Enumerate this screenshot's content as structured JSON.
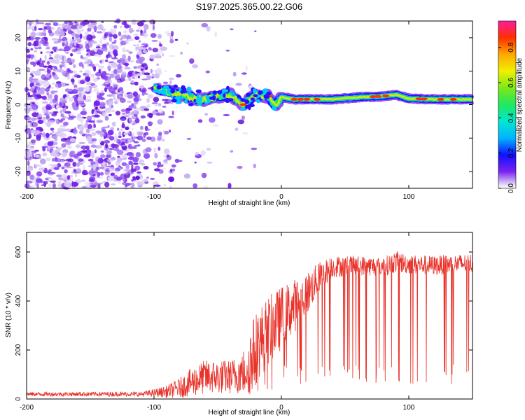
{
  "title": "S197.2025.365.00.22.G06",
  "chart_data": [
    {
      "type": "heatmap",
      "title": "S197.2025.365.00.22.G06",
      "xlabel": "Height of straight line (km)",
      "ylabel": "Frequency (Hz)",
      "xlim": [
        -200,
        150
      ],
      "ylim": [
        -25,
        25
      ],
      "x_ticks": [
        -200,
        -100,
        0,
        100
      ],
      "y_ticks": [
        -20,
        -10,
        0,
        10,
        20
      ],
      "ridge": {
        "x": [
          -100,
          -90,
          -80,
          -70,
          -60,
          -50,
          -40,
          -30,
          -20,
          -10,
          -5,
          0,
          10,
          20,
          40,
          60,
          80,
          90,
          100,
          120,
          150
        ],
        "freq": [
          5,
          4,
          3,
          2,
          1.5,
          2.5,
          3,
          0,
          3,
          2.5,
          -0.5,
          2.3,
          1.6,
          1.6,
          1.6,
          2.2,
          2.5,
          3,
          1.8,
          1.6,
          1.6
        ]
      },
      "colorbar": {
        "label": "Normalized spectral amplitude",
        "range": [
          0,
          0.95
        ],
        "ticks": [
          "0.0",
          "0.2",
          "0.4",
          "0.6",
          "0.8"
        ]
      }
    },
    {
      "type": "line",
      "xlabel": "Height of straight line (km)",
      "ylabel": "SNR (10 * v/v)",
      "xlim": [
        -200,
        150
      ],
      "ylim": [
        0,
        680
      ],
      "x_ticks": [
        -200,
        -100,
        0,
        100
      ],
      "y_ticks": [
        0,
        200,
        400,
        600
      ],
      "color": "#e8322a",
      "envelope": {
        "x": [
          -200,
          -110,
          -100,
          -90,
          -80,
          -70,
          -60,
          -50,
          -40,
          -30,
          -25,
          -20,
          -10,
          0,
          10,
          20,
          30,
          40,
          60,
          80,
          90,
          100,
          120,
          150
        ],
        "base": [
          20,
          20,
          25,
          30,
          45,
          70,
          90,
          90,
          90,
          110,
          150,
          210,
          280,
          330,
          380,
          430,
          500,
          540,
          545,
          540,
          560,
          550,
          545,
          555
        ],
        "amp": [
          8,
          10,
          15,
          25,
          40,
          60,
          70,
          70,
          70,
          90,
          140,
          150,
          140,
          130,
          110,
          90,
          60,
          45,
          40,
          40,
          45,
          40,
          40,
          40
        ]
      }
    }
  ]
}
